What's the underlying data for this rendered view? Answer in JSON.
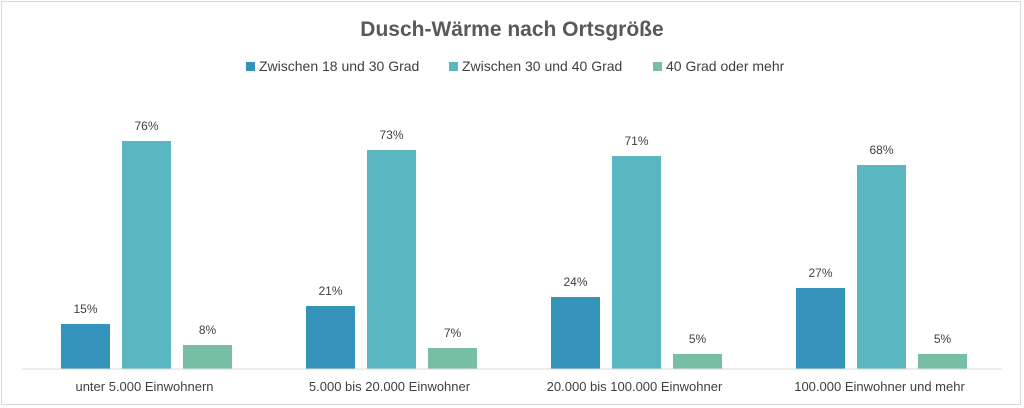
{
  "chart_data": {
    "type": "bar",
    "title": "Dusch-Wärme nach Ortsgröße",
    "xlabel": "",
    "ylabel": "",
    "ylim": [
      0,
      80
    ],
    "grid": false,
    "legend_position": "top",
    "categories": [
      "unter 5.000 Einwohnern",
      "5.000 bis 20.000 Einwohner",
      "20.000 bis 100.000 Einwohner",
      "100.000 Einwohner und mehr"
    ],
    "series": [
      {
        "name": "Zwischen 18 und 30 Grad",
        "color": "#3493bb",
        "values": [
          15,
          21,
          24,
          27
        ],
        "labels": [
          "15%",
          "21%",
          "24%",
          "27%"
        ]
      },
      {
        "name": "Zwischen 30 und 40 Grad",
        "color": "#5ab7c1",
        "values": [
          76,
          73,
          71,
          68
        ],
        "labels": [
          "76%",
          "73%",
          "71%",
          "68%"
        ]
      },
      {
        "name": "40 Grad oder mehr",
        "color": "#76bea4",
        "values": [
          8,
          7,
          5,
          5
        ],
        "labels": [
          "8%",
          "7%",
          "5%",
          "5%"
        ]
      }
    ]
  }
}
